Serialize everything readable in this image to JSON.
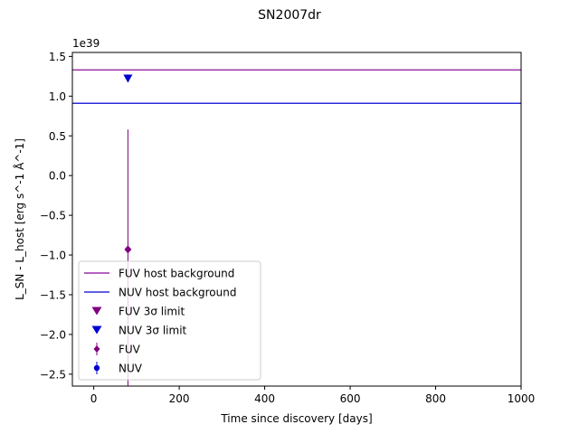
{
  "chart_data": {
    "type": "scatter",
    "title": "SN2007dr",
    "xlabel": "Time since discovery [days]",
    "ylabel": "L_SN - L_host [erg s^-1 Å^-1]",
    "offset_text": "1e39",
    "xlim": [
      -50,
      1000
    ],
    "ylim": [
      -2.65,
      1.55
    ],
    "xticks": [
      0,
      200,
      400,
      600,
      800,
      1000
    ],
    "xtick_labels": [
      "0",
      "200",
      "400",
      "600",
      "800",
      "1000"
    ],
    "yticks": [
      -2.5,
      -2.0,
      -1.5,
      -1.0,
      -0.5,
      0.0,
      0.5,
      1.0,
      1.5
    ],
    "ytick_labels": [
      "−2.5",
      "−2.0",
      "−1.5",
      "−1.0",
      "−0.5",
      "0.0",
      "0.5",
      "1.0",
      "1.5"
    ],
    "grid": false,
    "legend_position": "lower-left",
    "hlines": [
      {
        "name": "FUV host background",
        "y": 1.33,
        "color": "#9a2ea8"
      },
      {
        "name": "NUV host background",
        "y": 0.91,
        "color": "#2b2bd9"
      }
    ],
    "limits": [
      {
        "name": "FUV 3σ limit",
        "color": "#800080",
        "points": []
      },
      {
        "name": "NUV 3σ limit",
        "color": "#0000d0",
        "points": [
          {
            "x": 80,
            "y": 1.22
          }
        ]
      }
    ],
    "series": [
      {
        "name": "FUV",
        "color": "#800080",
        "marker": "diamond",
        "points": [
          {
            "x": 80,
            "y": -0.93,
            "yerr_low": 1.72,
            "yerr_high": 1.51
          }
        ]
      },
      {
        "name": "NUV",
        "color": "#0000d0",
        "marker": "circle",
        "points": []
      }
    ]
  }
}
